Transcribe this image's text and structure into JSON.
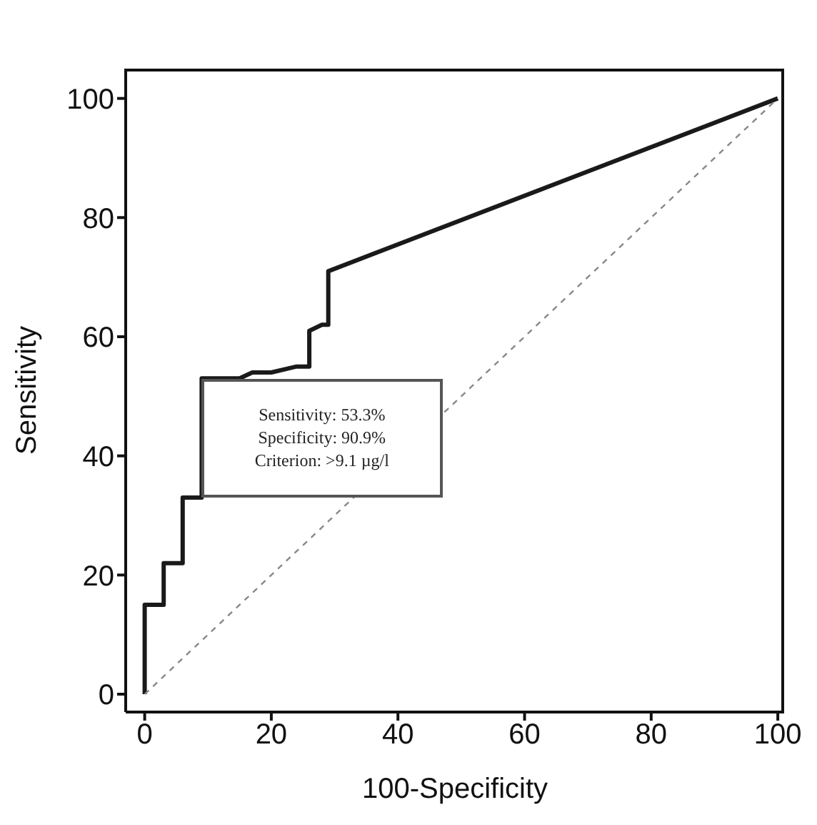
{
  "chart_data": {
    "type": "line",
    "xlabel": "100-Specificity",
    "ylabel": "Sensitivity",
    "series": [
      {
        "color": "#1a1a1a",
        "x": [
          0,
          0,
          3,
          3,
          6,
          6,
          9,
          9,
          15,
          17,
          20,
          24,
          26,
          26,
          28,
          29,
          29,
          100
        ],
        "values": [
          0,
          15,
          15,
          22,
          22,
          33,
          33,
          53,
          53,
          54,
          54,
          55,
          55,
          61,
          62,
          62,
          71,
          100
        ],
        "line_style": "solid"
      },
      {
        "color": "#888888",
        "x": [
          0,
          100
        ],
        "values": [
          0,
          100
        ],
        "line_style": "dashed"
      }
    ],
    "xlim": [
      -3,
      101
    ],
    "ylim": [
      -3,
      105
    ],
    "xticks": [
      0,
      20,
      40,
      60,
      80,
      100
    ],
    "yticks": [
      0,
      20,
      40,
      60,
      80,
      100
    ],
    "grid": false,
    "marker": "none",
    "annotations": [
      "Sensitivity: 53.3%",
      "Specificity: 90.9%",
      "Criterion: >9.1 µg/l"
    ]
  }
}
